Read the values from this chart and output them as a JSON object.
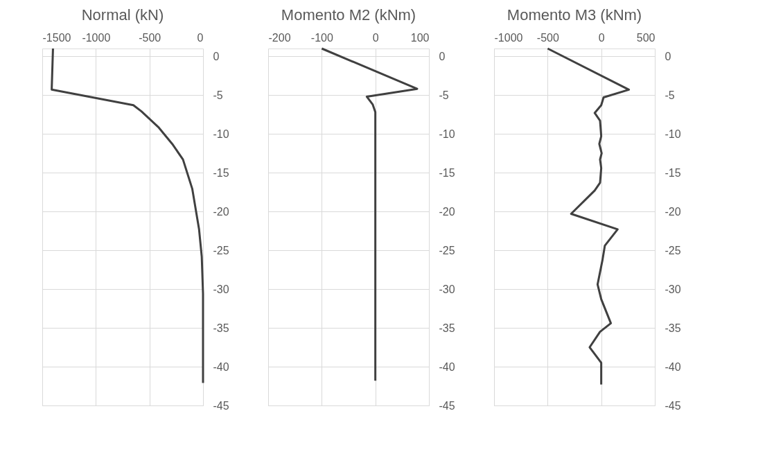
{
  "chart_data": [
    {
      "type": "line",
      "title": "Normal (kN)",
      "xlim": [
        -1500,
        0
      ],
      "xticks": [
        -1500,
        -1000,
        -500,
        0
      ],
      "ylim": [
        -45,
        1
      ],
      "yticks": [
        0,
        -5,
        -10,
        -15,
        -20,
        -25,
        -30,
        -35,
        -40,
        -45
      ],
      "grid": true,
      "series": [
        {
          "color": "#404040",
          "x": [
            -1400,
            -1412,
            -650,
            -575,
            -412,
            -287,
            -187,
            -100,
            -37,
            -12,
            0,
            0
          ],
          "values": [
            1,
            -4.3,
            -6.3,
            -7.1,
            -9.2,
            -11.3,
            -13.3,
            -17.1,
            -22.3,
            -25.8,
            -30.6,
            -42.1
          ]
        }
      ]
    },
    {
      "type": "line",
      "title": "Momento M2 (kNm)",
      "xlim": [
        -200,
        100
      ],
      "xticks": [
        -200,
        -100,
        0,
        100
      ],
      "ylim": [
        -45,
        1
      ],
      "yticks": [
        0,
        -5,
        -10,
        -15,
        -20,
        -25,
        -30,
        -35,
        -40,
        -45
      ],
      "grid": true,
      "series": [
        {
          "color": "#404040",
          "x": [
            -100,
            78,
            -16,
            -5,
            0,
            0
          ],
          "values": [
            1,
            -4.2,
            -5.2,
            -6.2,
            -7.2,
            -41.8
          ]
        }
      ]
    },
    {
      "type": "line",
      "title": "Momento M3 (kNm)",
      "xlim": [
        -1000,
        500
      ],
      "xticks": [
        -1000,
        -500,
        0,
        500
      ],
      "ylim": [
        -45,
        1
      ],
      "yticks": [
        0,
        -5,
        -10,
        -15,
        -20,
        -25,
        -30,
        -35,
        -40,
        -45
      ],
      "grid": true,
      "series": [
        {
          "color": "#404040",
          "x": [
            -500,
            258,
            22,
            0,
            -61,
            -11,
            0,
            -18,
            4,
            -11,
            0,
            -11,
            -61,
            -281,
            153,
            34,
            11,
            -34,
            0,
            90,
            -11,
            -108,
            0,
            0
          ],
          "values": [
            1,
            -4.3,
            -5.3,
            -6.3,
            -7.3,
            -8.3,
            -10.3,
            -11.3,
            -12.5,
            -13.3,
            -14.4,
            -16.3,
            -17.3,
            -20.3,
            -22.3,
            -24.4,
            -26.3,
            -29.4,
            -31.3,
            -34.4,
            -35.5,
            -37.5,
            -39.5,
            -42.3
          ]
        }
      ]
    }
  ]
}
